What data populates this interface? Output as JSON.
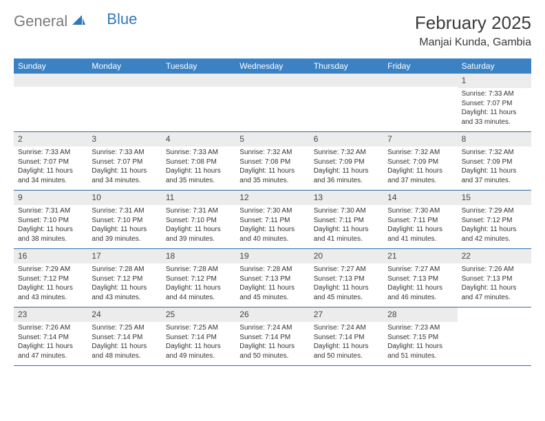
{
  "brand": {
    "part1": "General",
    "part2": "Blue"
  },
  "title": {
    "month": "February 2025",
    "location": "Manjai Kunda, Gambia"
  },
  "style": {
    "header_bg": "#3b82c4",
    "header_fg": "#ffffff",
    "band_bg": "#ececec",
    "row_border": "#2f6aa8",
    "text_color": "#333333",
    "logo_gray": "#7a7a7a",
    "logo_blue": "#2f77bb",
    "sail_fill": "#2f77bb"
  },
  "day_headers": [
    "Sunday",
    "Monday",
    "Tuesday",
    "Wednesday",
    "Thursday",
    "Friday",
    "Saturday"
  ],
  "weeks": [
    [
      {
        "empty": true
      },
      {
        "empty": true
      },
      {
        "empty": true
      },
      {
        "empty": true
      },
      {
        "empty": true
      },
      {
        "empty": true
      },
      {
        "num": "1",
        "sunrise": "Sunrise: 7:33 AM",
        "sunset": "Sunset: 7:07 PM",
        "daylight": "Daylight: 11 hours and 33 minutes."
      }
    ],
    [
      {
        "num": "2",
        "sunrise": "Sunrise: 7:33 AM",
        "sunset": "Sunset: 7:07 PM",
        "daylight": "Daylight: 11 hours and 34 minutes."
      },
      {
        "num": "3",
        "sunrise": "Sunrise: 7:33 AM",
        "sunset": "Sunset: 7:07 PM",
        "daylight": "Daylight: 11 hours and 34 minutes."
      },
      {
        "num": "4",
        "sunrise": "Sunrise: 7:33 AM",
        "sunset": "Sunset: 7:08 PM",
        "daylight": "Daylight: 11 hours and 35 minutes."
      },
      {
        "num": "5",
        "sunrise": "Sunrise: 7:32 AM",
        "sunset": "Sunset: 7:08 PM",
        "daylight": "Daylight: 11 hours and 35 minutes."
      },
      {
        "num": "6",
        "sunrise": "Sunrise: 7:32 AM",
        "sunset": "Sunset: 7:09 PM",
        "daylight": "Daylight: 11 hours and 36 minutes."
      },
      {
        "num": "7",
        "sunrise": "Sunrise: 7:32 AM",
        "sunset": "Sunset: 7:09 PM",
        "daylight": "Daylight: 11 hours and 37 minutes."
      },
      {
        "num": "8",
        "sunrise": "Sunrise: 7:32 AM",
        "sunset": "Sunset: 7:09 PM",
        "daylight": "Daylight: 11 hours and 37 minutes."
      }
    ],
    [
      {
        "num": "9",
        "sunrise": "Sunrise: 7:31 AM",
        "sunset": "Sunset: 7:10 PM",
        "daylight": "Daylight: 11 hours and 38 minutes."
      },
      {
        "num": "10",
        "sunrise": "Sunrise: 7:31 AM",
        "sunset": "Sunset: 7:10 PM",
        "daylight": "Daylight: 11 hours and 39 minutes."
      },
      {
        "num": "11",
        "sunrise": "Sunrise: 7:31 AM",
        "sunset": "Sunset: 7:10 PM",
        "daylight": "Daylight: 11 hours and 39 minutes."
      },
      {
        "num": "12",
        "sunrise": "Sunrise: 7:30 AM",
        "sunset": "Sunset: 7:11 PM",
        "daylight": "Daylight: 11 hours and 40 minutes."
      },
      {
        "num": "13",
        "sunrise": "Sunrise: 7:30 AM",
        "sunset": "Sunset: 7:11 PM",
        "daylight": "Daylight: 11 hours and 41 minutes."
      },
      {
        "num": "14",
        "sunrise": "Sunrise: 7:30 AM",
        "sunset": "Sunset: 7:11 PM",
        "daylight": "Daylight: 11 hours and 41 minutes."
      },
      {
        "num": "15",
        "sunrise": "Sunrise: 7:29 AM",
        "sunset": "Sunset: 7:12 PM",
        "daylight": "Daylight: 11 hours and 42 minutes."
      }
    ],
    [
      {
        "num": "16",
        "sunrise": "Sunrise: 7:29 AM",
        "sunset": "Sunset: 7:12 PM",
        "daylight": "Daylight: 11 hours and 43 minutes."
      },
      {
        "num": "17",
        "sunrise": "Sunrise: 7:28 AM",
        "sunset": "Sunset: 7:12 PM",
        "daylight": "Daylight: 11 hours and 43 minutes."
      },
      {
        "num": "18",
        "sunrise": "Sunrise: 7:28 AM",
        "sunset": "Sunset: 7:12 PM",
        "daylight": "Daylight: 11 hours and 44 minutes."
      },
      {
        "num": "19",
        "sunrise": "Sunrise: 7:28 AM",
        "sunset": "Sunset: 7:13 PM",
        "daylight": "Daylight: 11 hours and 45 minutes."
      },
      {
        "num": "20",
        "sunrise": "Sunrise: 7:27 AM",
        "sunset": "Sunset: 7:13 PM",
        "daylight": "Daylight: 11 hours and 45 minutes."
      },
      {
        "num": "21",
        "sunrise": "Sunrise: 7:27 AM",
        "sunset": "Sunset: 7:13 PM",
        "daylight": "Daylight: 11 hours and 46 minutes."
      },
      {
        "num": "22",
        "sunrise": "Sunrise: 7:26 AM",
        "sunset": "Sunset: 7:13 PM",
        "daylight": "Daylight: 11 hours and 47 minutes."
      }
    ],
    [
      {
        "num": "23",
        "sunrise": "Sunrise: 7:26 AM",
        "sunset": "Sunset: 7:14 PM",
        "daylight": "Daylight: 11 hours and 47 minutes."
      },
      {
        "num": "24",
        "sunrise": "Sunrise: 7:25 AM",
        "sunset": "Sunset: 7:14 PM",
        "daylight": "Daylight: 11 hours and 48 minutes."
      },
      {
        "num": "25",
        "sunrise": "Sunrise: 7:25 AM",
        "sunset": "Sunset: 7:14 PM",
        "daylight": "Daylight: 11 hours and 49 minutes."
      },
      {
        "num": "26",
        "sunrise": "Sunrise: 7:24 AM",
        "sunset": "Sunset: 7:14 PM",
        "daylight": "Daylight: 11 hours and 50 minutes."
      },
      {
        "num": "27",
        "sunrise": "Sunrise: 7:24 AM",
        "sunset": "Sunset: 7:14 PM",
        "daylight": "Daylight: 11 hours and 50 minutes."
      },
      {
        "num": "28",
        "sunrise": "Sunrise: 7:23 AM",
        "sunset": "Sunset: 7:15 PM",
        "daylight": "Daylight: 11 hours and 51 minutes."
      },
      {
        "empty": true,
        "noband": true
      }
    ]
  ]
}
